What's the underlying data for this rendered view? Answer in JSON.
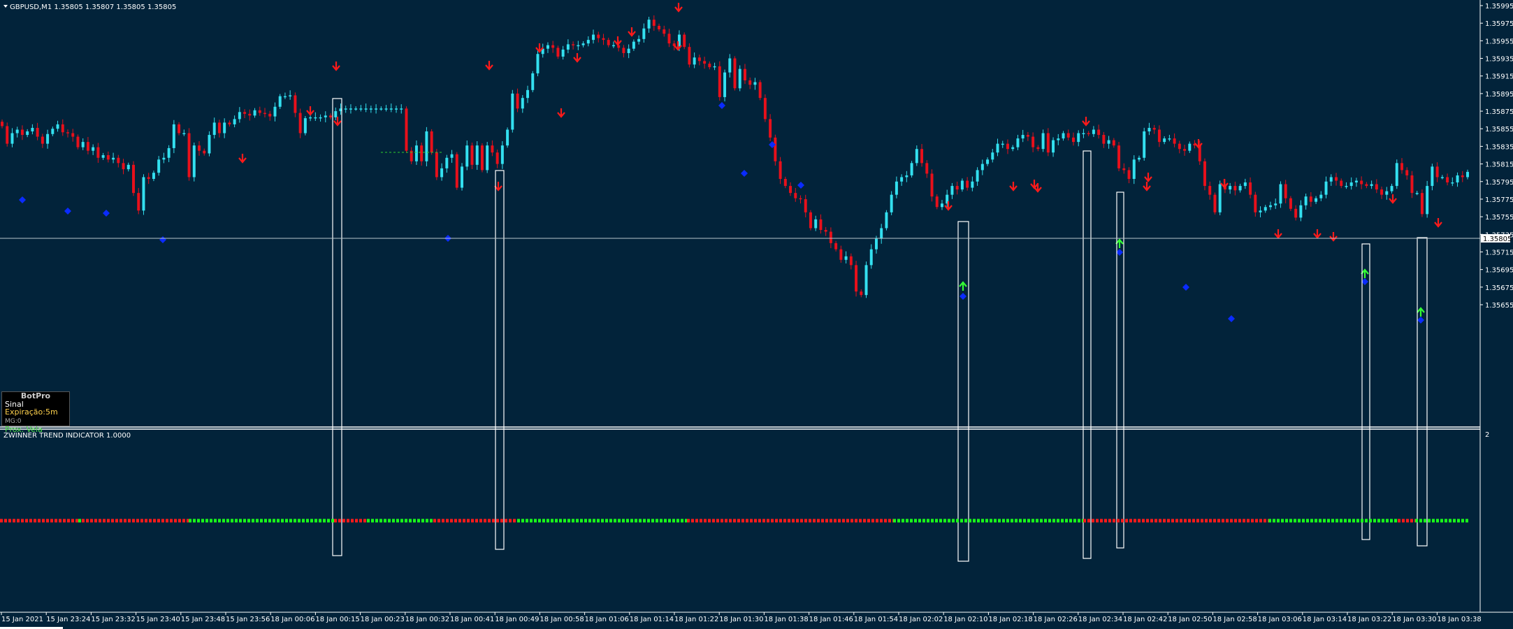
{
  "symbol_info": "GBPUSD,M1  1.35805 1.35807 1.35805 1.35805",
  "indicator_title": "ZWINNER TREND INDICATOR 1.0000",
  "indicator_scale_label": "2",
  "current_price": "1.35805",
  "colors": {
    "background": "#02233a",
    "bull": "#33e0f0",
    "bear": "#e8101b",
    "arrow_down": "#ff1a1a",
    "arrow_up": "#35ff35",
    "dot": "#0a2bff",
    "trend_green": "#19ff19",
    "trend_red": "#ff1a1a"
  },
  "price_axis": {
    "labels": [
      "1.35995",
      "1.35975",
      "1.35955",
      "1.35935",
      "1.35915",
      "1.35895",
      "1.35875",
      "1.35855",
      "1.35835",
      "1.35815",
      "1.35795",
      "1.35775",
      "1.35755",
      "1.35735",
      "1.35715",
      "1.35695",
      "1.35675",
      "1.35655"
    ]
  },
  "time_axis": {
    "labels": [
      "15 Jan 2021",
      "15 Jan 23:24",
      "15 Jan 23:32",
      "15 Jan 23:40",
      "15 Jan 23:48",
      "15 Jan 23:56",
      "18 Jan 00:06",
      "18 Jan 00:15",
      "18 Jan 00:23",
      "18 Jan 00:32",
      "18 Jan 00:41",
      "18 Jan 00:49",
      "18 Jan 00:58",
      "18 Jan 01:06",
      "18 Jan 01:14",
      "18 Jan 01:22",
      "18 Jan 01:30",
      "18 Jan 01:38",
      "18 Jan 01:46",
      "18 Jan 01:54",
      "18 Jan 02:02",
      "18 Jan 02:10",
      "18 Jan 02:18",
      "18 Jan 02:26",
      "18 Jan 02:34",
      "18 Jan 02:42",
      "18 Jan 02:50",
      "18 Jan 02:58",
      "18 Jan 03:06",
      "18 Jan 03:14",
      "18 Jan 03:22",
      "18 Jan 03:30",
      "18 Jan 03:38"
    ]
  },
  "botpro": {
    "title": "BotPro",
    "signal_label": "Sinal",
    "expiration_label": "Expiração:5m",
    "mg_label": "MG:0",
    "next_label": "Prox. Vela"
  },
  "chart_data": {
    "type": "candlestick",
    "close": [
      1.35858,
      1.35838,
      1.3585,
      1.35854,
      1.35848,
      1.35852,
      1.35856,
      1.35846,
      1.35838,
      1.35849,
      1.35855,
      1.3586,
      1.35851,
      1.3585,
      1.35846,
      1.35834,
      1.3584,
      1.3583,
      1.35834,
      1.35822,
      1.35825,
      1.3582,
      1.35822,
      1.35816,
      1.35809,
      1.35814,
      1.35782,
      1.35762,
      1.358,
      1.35798,
      1.35805,
      1.3582,
      1.35822,
      1.35833,
      1.3586,
      1.3585,
      1.3585,
      1.358,
      1.35836,
      1.3583,
      1.35827,
      1.35848,
      1.35862,
      1.3585,
      1.35862,
      1.3586,
      1.35866,
      1.35874,
      1.35872,
      1.3587,
      1.35876,
      1.35873,
      1.35872,
      1.35869,
      1.3588,
      1.35892,
      1.35892,
      1.35893,
      1.35873,
      1.3585,
      1.35867,
      1.35868,
      1.35868,
      1.35868,
      1.3587,
      1.35868,
      1.35875,
      1.35878,
      1.35878,
      1.35878,
      1.35878,
      1.35878,
      1.35878,
      1.35878,
      1.35878,
      1.35878,
      1.35878,
      1.35878,
      1.35878,
      1.35878,
      1.3583,
      1.35818,
      1.35836,
      1.35818,
      1.35852,
      1.35828,
      1.358,
      1.3581,
      1.35822,
      1.35826,
      1.35788,
      1.35812,
      1.35836,
      1.35814,
      1.35836,
      1.35808,
      1.35836,
      1.35828,
      1.35815,
      1.35836,
      1.35854,
      1.35895,
      1.35878,
      1.3589,
      1.35899,
      1.35918,
      1.3594,
      1.35946,
      1.3595,
      1.35947,
      1.35937,
      1.35945,
      1.35951,
      1.3595,
      1.3595,
      1.35952,
      1.35956,
      1.35962,
      1.35958,
      1.35956,
      1.3595,
      1.3595,
      1.35947,
      1.35941,
      1.35946,
      1.35954,
      1.35957,
      1.35969,
      1.35979,
      1.35972,
      1.35968,
      1.35963,
      1.35952,
      1.35949,
      1.35962,
      1.35948,
      1.35928,
      1.35936,
      1.35932,
      1.35929,
      1.35925,
      1.35926,
      1.35891,
      1.35919,
      1.35935,
      1.35901,
      1.35923,
      1.3591,
      1.35905,
      1.35908,
      1.3589,
      1.35866,
      1.35845,
      1.35818,
      1.35798,
      1.3579,
      1.35782,
      1.35776,
      1.35775,
      1.3576,
      1.35742,
      1.35752,
      1.3574,
      1.35738,
      1.35725,
      1.35718,
      1.35706,
      1.3571,
      1.357,
      1.3567,
      1.35666,
      1.357,
      1.35718,
      1.3573,
      1.35742,
      1.3576,
      1.3578,
      1.35795,
      1.358,
      1.35802,
      1.35816,
      1.35832,
      1.35816,
      1.35804,
      1.35778,
      1.35766,
      1.3577,
      1.3578,
      1.3579,
      1.35786,
      1.35796,
      1.35788,
      1.35795,
      1.35808,
      1.35815,
      1.3582,
      1.35828,
      1.35838,
      1.35838,
      1.35832,
      1.35834,
      1.35844,
      1.35848,
      1.35846,
      1.35834,
      1.35832,
      1.3585,
      1.35828,
      1.35842,
      1.35844,
      1.3585,
      1.35845,
      1.3584,
      1.3585,
      1.3585,
      1.35849,
      1.35854,
      1.35848,
      1.35838,
      1.35842,
      1.35836,
      1.3581,
      1.35808,
      1.35798,
      1.3582,
      1.35822,
      1.35852,
      1.35856,
      1.35854,
      1.3584,
      1.35844,
      1.35844,
      1.35838,
      1.35832,
      1.3583,
      1.35838,
      1.35836,
      1.35818,
      1.3579,
      1.3578,
      1.3576,
      1.35792,
      1.35786,
      1.3579,
      1.35785,
      1.3579,
      1.35794,
      1.3578,
      1.3576,
      1.35762,
      1.35766,
      1.35768,
      1.3577,
      1.35792,
      1.35776,
      1.35764,
      1.35754,
      1.35768,
      1.35778,
      1.35772,
      1.35776,
      1.3578,
      1.35795,
      1.358,
      1.35796,
      1.3579,
      1.3579,
      1.35794,
      1.35796,
      1.35792,
      1.3579,
      1.35792,
      1.35786,
      1.3578,
      1.35784,
      1.3579,
      1.35816,
      1.35808,
      1.35802,
      1.35782,
      1.35782,
      1.35758,
      1.3579,
      1.35812,
      1.358,
      1.358,
      1.35794,
      1.35794,
      1.35802,
      1.358,
      1.35806
    ],
    "price_min": 1.35648,
    "price_max": 1.36
  }
}
